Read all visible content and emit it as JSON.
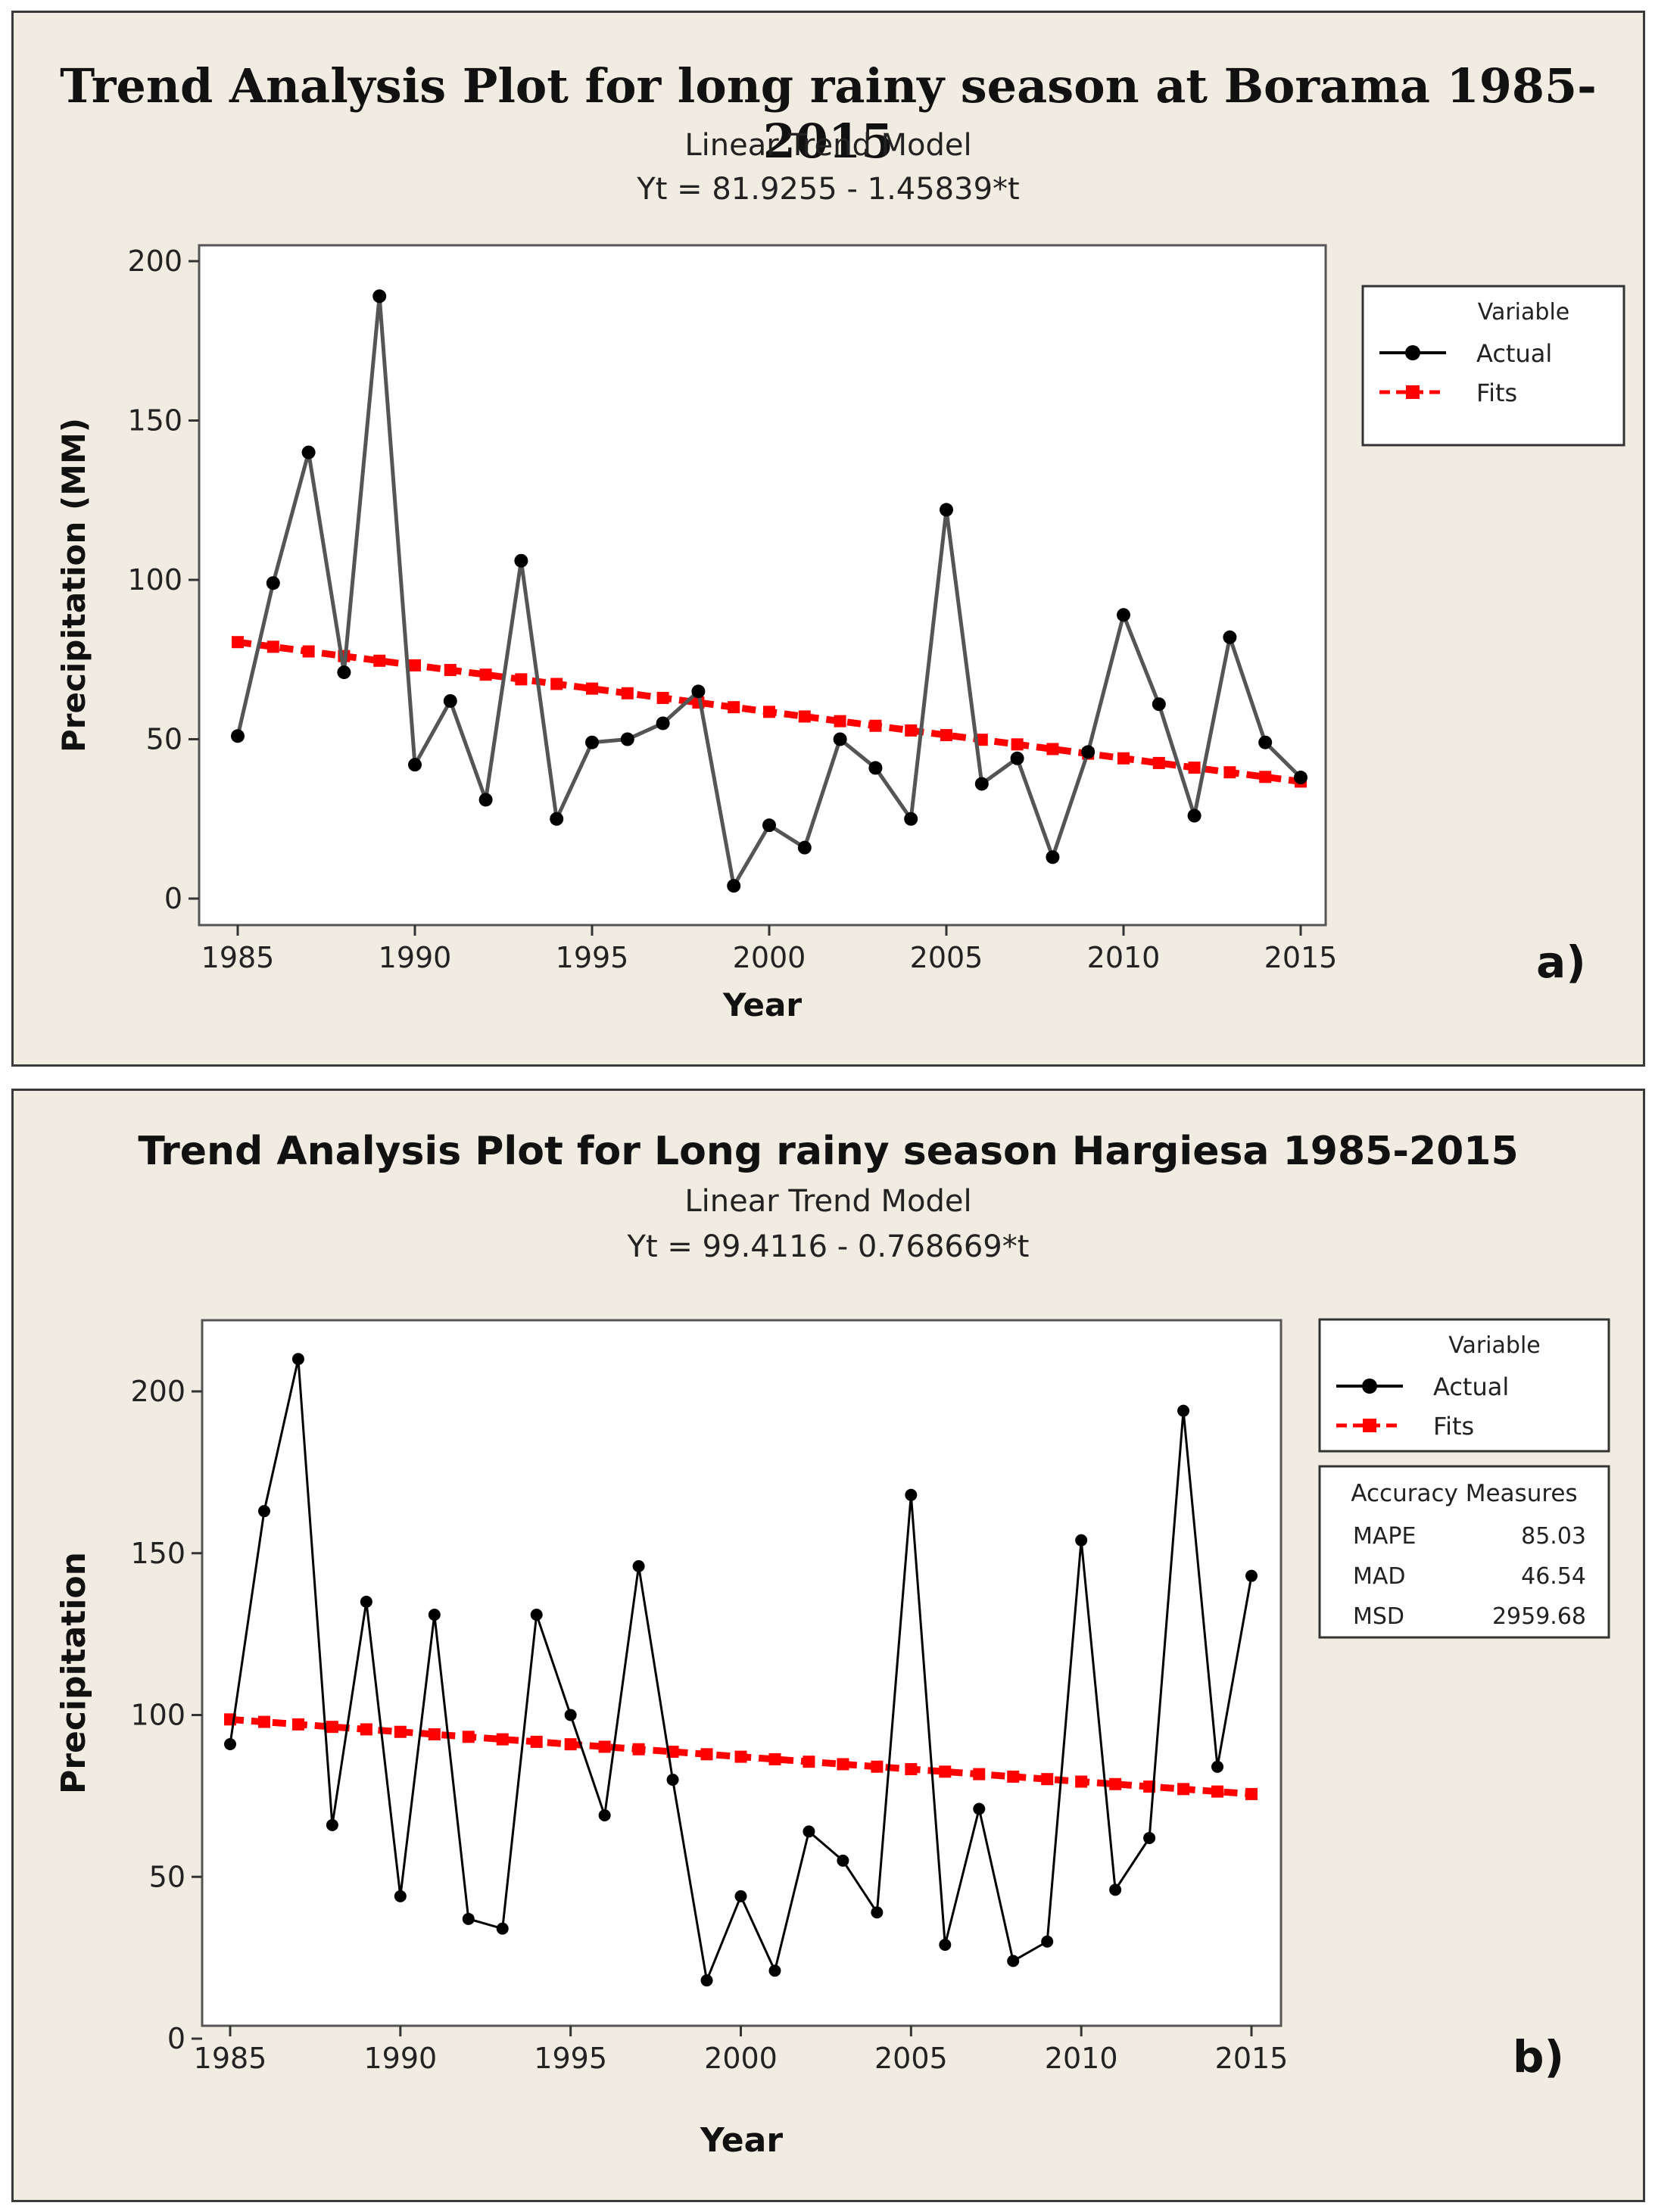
{
  "chart_data": [
    {
      "type": "line",
      "title": "Trend Analysis Plot for long  rainy season at Borama 1985-2015",
      "model": "Linear Trend Model",
      "equation": "Yt = 81.9255 - 1.45839*t",
      "xlabel": "Year",
      "ylabel": "Precipitation (MM)",
      "xlim": [
        1985,
        2015
      ],
      "ylim": [
        0,
        200
      ],
      "xticks": [
        1985,
        1990,
        1995,
        2000,
        2005,
        2010,
        2015
      ],
      "yticks": [
        0,
        50,
        100,
        150,
        200
      ],
      "x": [
        1985,
        1986,
        1987,
        1988,
        1989,
        1990,
        1991,
        1992,
        1993,
        1994,
        1995,
        1996,
        1997,
        1998,
        1999,
        2000,
        2001,
        2002,
        2003,
        2004,
        2005,
        2006,
        2007,
        2008,
        2009,
        2010,
        2011,
        2012,
        2013,
        2014,
        2015
      ],
      "series": [
        {
          "name": "Actual",
          "color": "#000000",
          "values": [
            51,
            99,
            140,
            71,
            189,
            42,
            62,
            31,
            106,
            25,
            49,
            50,
            55,
            65,
            4,
            23,
            16,
            50,
            41,
            25,
            122,
            36,
            44,
            13,
            46,
            89,
            61,
            26,
            82,
            49,
            38
          ]
        },
        {
          "name": "Fits",
          "color": "#ff0000",
          "values": [
            80.47,
            79.01,
            77.55,
            76.09,
            74.63,
            73.18,
            71.72,
            70.26,
            68.8,
            67.34,
            65.88,
            64.42,
            62.96,
            61.51,
            60.05,
            58.59,
            57.13,
            55.67,
            54.21,
            52.75,
            51.29,
            49.84,
            48.38,
            46.92,
            45.46,
            44.0,
            42.54,
            41.08,
            39.62,
            38.17,
            36.71
          ]
        }
      ],
      "legend": {
        "title": "Variable",
        "entries": [
          "Actual",
          "Fits"
        ],
        "position": "right"
      },
      "panel_label": "a)"
    },
    {
      "type": "line",
      "title": "Trend Analysis Plot for Long rainy season Hargiesa 1985-2015",
      "model": "Linear Trend Model",
      "equation": "Yt = 99.4116 - 0.768669*t",
      "xlabel": "Year",
      "ylabel": "Precipitation",
      "xlim": [
        1985,
        2015
      ],
      "ylim": [
        0,
        220
      ],
      "xticks": [
        1985,
        1990,
        1995,
        2000,
        2005,
        2010,
        2015
      ],
      "yticks": [
        0,
        50,
        100,
        150,
        200
      ],
      "x": [
        1985,
        1986,
        1987,
        1988,
        1989,
        1990,
        1991,
        1992,
        1993,
        1994,
        1995,
        1996,
        1997,
        1998,
        1999,
        2000,
        2001,
        2002,
        2003,
        2004,
        2005,
        2006,
        2007,
        2008,
        2009,
        2010,
        2011,
        2012,
        2013,
        2014,
        2015
      ],
      "series": [
        {
          "name": "Actual",
          "color": "#000000",
          "values": [
            91,
            163,
            210,
            66,
            135,
            44,
            131,
            37,
            34,
            131,
            100,
            69,
            146,
            80,
            18,
            44,
            21,
            64,
            55,
            39,
            168,
            29,
            71,
            24,
            30,
            154,
            46,
            62,
            194,
            84,
            143
          ]
        },
        {
          "name": "Fits",
          "color": "#ff0000",
          "values": [
            98.64,
            97.88,
            97.11,
            96.34,
            95.57,
            94.8,
            94.03,
            93.26,
            92.49,
            91.72,
            90.96,
            90.19,
            89.42,
            88.65,
            87.88,
            87.11,
            86.34,
            85.57,
            84.8,
            84.04,
            83.27,
            82.5,
            81.73,
            80.96,
            80.19,
            79.42,
            78.65,
            77.88,
            77.12,
            76.35,
            75.58
          ]
        }
      ],
      "legend": {
        "title": "Variable",
        "entries": [
          "Actual",
          "Fits"
        ],
        "position": "right"
      },
      "accuracy": {
        "title": "Accuracy Measures",
        "rows": [
          {
            "label": "MAPE",
            "value": "85.03"
          },
          {
            "label": "MAD",
            "value": "46.54"
          },
          {
            "label": "MSD",
            "value": "2959.68"
          }
        ]
      },
      "panel_label": "b)"
    }
  ]
}
